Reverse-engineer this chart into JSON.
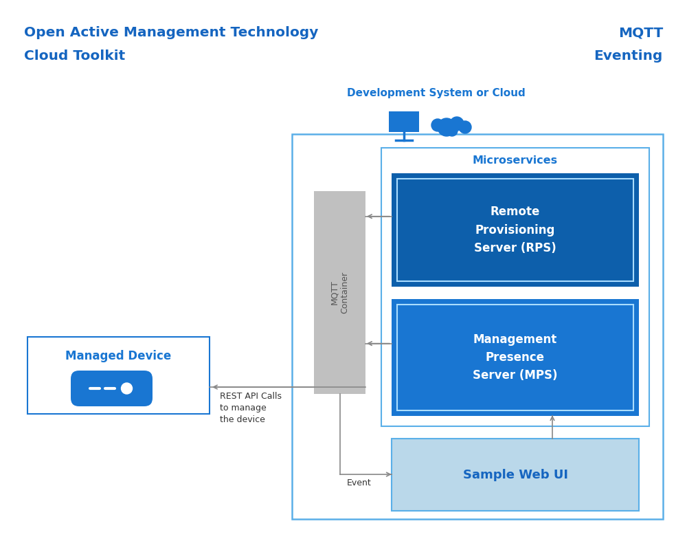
{
  "title_left_line1": "Open Active Management Technology",
  "title_left_line2": "Cloud Toolkit",
  "title_right_line1": "MQTT",
  "title_right_line2": "Eventing",
  "title_color": "#1565C0",
  "bg_color": "#FFFFFF",
  "dev_system_label": "Development System or Cloud",
  "dev_system_color": "#1976D2",
  "outer_box_color": "#5AAFE8",
  "microservices_label": "Microservices",
  "microservices_color": "#1976D2",
  "rps_label": "Remote\nProvisioning\nServer (RPS)",
  "rps_bg": "#0D5FAB",
  "rps_border": "#AADDFF",
  "rps_text_color": "#FFFFFF",
  "mps_label": "Management\nPresence\nServer (MPS)",
  "mps_bg": "#1976D2",
  "mps_border": "#AADDFF",
  "mps_text_color": "#FFFFFF",
  "mqtt_label": "MQTT\nContainer",
  "mqtt_bg": "#C0C0C0",
  "mqtt_text_color": "#555555",
  "sample_web_ui_label": "Sample Web UI",
  "sample_web_ui_bg": "#BAD8EA",
  "sample_web_ui_border": "#5AAFE8",
  "sample_web_ui_color": "#1565C0",
  "managed_device_label": "Managed Device",
  "managed_device_color": "#1976D2",
  "managed_device_border": "#1976D2",
  "rest_api_label": "REST API Calls\nto manage\nthe device",
  "event_label": "Event",
  "arrow_color": "#888888"
}
